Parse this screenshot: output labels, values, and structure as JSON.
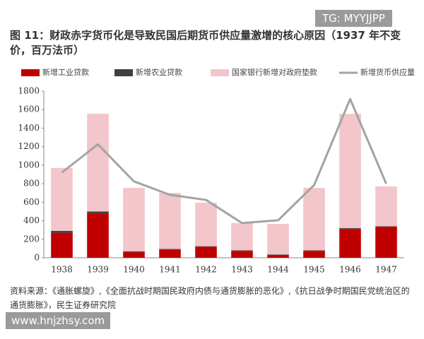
{
  "chart_data": {
    "type": "bar",
    "title": "图 11：财政赤字货币化是导致民国后期货币供应量激增的核心原因（1937 年不变价，百万法币）",
    "categories": [
      "1938",
      "1939",
      "1940",
      "1941",
      "1942",
      "1943",
      "1944",
      "1945",
      "1946",
      "1947"
    ],
    "series": [
      {
        "name": "新增工业贷款",
        "type": "bar",
        "color": "#c00000",
        "values": [
          270,
          480,
          60,
          85,
          120,
          75,
          30,
          75,
          310,
          335
        ]
      },
      {
        "name": "新增农业贷款",
        "type": "bar",
        "color": "#404040",
        "values": [
          20,
          20,
          10,
          10,
          5,
          5,
          5,
          5,
          10,
          5
        ]
      },
      {
        "name": "国家银行新增对政府垫款",
        "type": "bar",
        "color": "#f2c6ca",
        "values": [
          680,
          1055,
          685,
          605,
          470,
          295,
          330,
          675,
          1235,
          430
        ]
      },
      {
        "name": "新增货币供应量",
        "type": "line",
        "color": "#a3a3a3",
        "values": [
          920,
          1225,
          825,
          680,
          625,
          375,
          405,
          785,
          1715,
          800
        ]
      }
    ],
    "stacked": true,
    "ylim": [
      0,
      1800
    ],
    "yticks": [
      0,
      200,
      400,
      600,
      800,
      1000,
      1200,
      1400,
      1600,
      1800
    ],
    "grid": false,
    "legend": "top",
    "source": "资料来源：《通胀螺旋》,《全面抗战时期国民政府内债与通货膨胀的恶化》,《抗日战争时期国民党统治区的通货膨胀》，民生证券研究院"
  },
  "watermarks": [
    "TG: MYYJJPP",
    "www.hnjzhsy.com"
  ]
}
